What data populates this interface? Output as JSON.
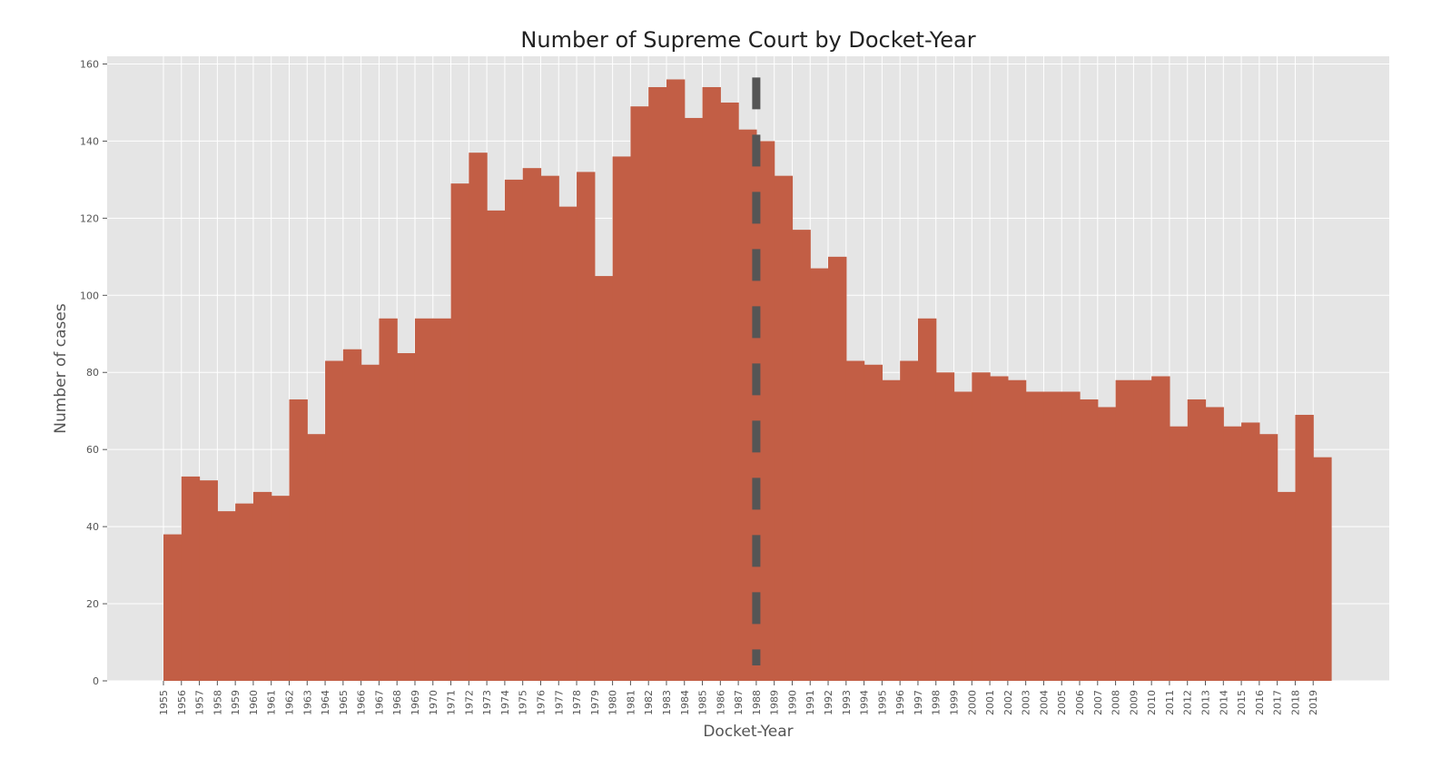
{
  "chart_data": {
    "type": "bar",
    "title": "Number of Supreme Court by Docket-Year",
    "xlabel": "Docket-Year",
    "ylabel": "Number of cases",
    "ylim": [
      0,
      162
    ],
    "yticks": [
      0,
      20,
      40,
      60,
      80,
      100,
      120,
      140,
      160
    ],
    "grid": true,
    "categories": [
      "1955",
      "1956",
      "1957",
      "1958",
      "1959",
      "1960",
      "1961",
      "1962",
      "1963",
      "1964",
      "1965",
      "1966",
      "1967",
      "1968",
      "1969",
      "1970",
      "1971",
      "1972",
      "1973",
      "1974",
      "1975",
      "1976",
      "1977",
      "1978",
      "1979",
      "1980",
      "1981",
      "1982",
      "1983",
      "1984",
      "1985",
      "1986",
      "1987",
      "1988",
      "1989",
      "1990",
      "1991",
      "1992",
      "1993",
      "1994",
      "1995",
      "1996",
      "1997",
      "1998",
      "1999",
      "2000",
      "2001",
      "2002",
      "2003",
      "2004",
      "2005",
      "2006",
      "2007",
      "2008",
      "2009",
      "2010",
      "2011",
      "2012",
      "2013",
      "2014",
      "2015",
      "2016",
      "2017",
      "2018",
      "2019"
    ],
    "values": [
      38,
      53,
      52,
      44,
      46,
      49,
      48,
      73,
      64,
      83,
      86,
      82,
      94,
      85,
      94,
      94,
      129,
      137,
      122,
      130,
      133,
      131,
      123,
      132,
      105,
      136,
      149,
      154,
      156,
      146,
      154,
      150,
      143,
      140,
      131,
      117,
      107,
      110,
      83,
      82,
      78,
      83,
      94,
      80,
      75,
      80,
      79,
      78,
      75,
      75,
      75,
      73,
      71,
      78,
      78,
      79,
      66,
      73,
      71,
      66,
      67,
      64,
      49,
      69,
      58
    ],
    "reference_line": {
      "x": "1988",
      "style": "dashed"
    },
    "colors": {
      "bars": "#c25e45",
      "reference_line": "#555555",
      "plot_background": "#e5e5e5",
      "grid": "#ffffff"
    }
  }
}
